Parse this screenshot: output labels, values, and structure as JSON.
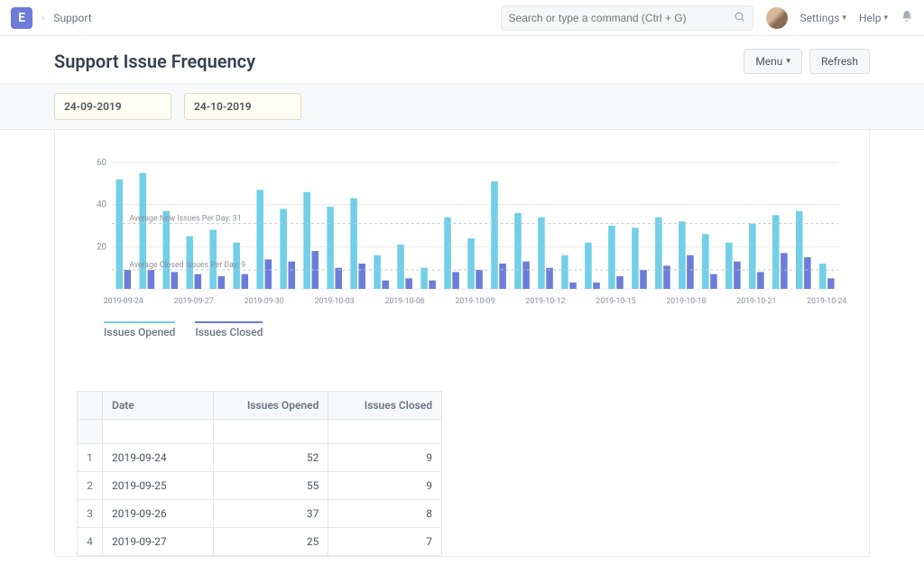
{
  "nav": {
    "logo_letter": "E",
    "breadcrumb": "Support",
    "search_placeholder": "Search or type a command (Ctrl + G)",
    "settings_label": "Settings",
    "help_label": "Help"
  },
  "header": {
    "title": "Support Issue Frequency",
    "menu_label": "Menu",
    "refresh_label": "Refresh"
  },
  "filters": {
    "from_date": "24-09-2019",
    "to_date": "24-10-2019"
  },
  "chart": {
    "type": "grouped-bar",
    "y_max": 60,
    "y_ticks": [
      20,
      40,
      60
    ],
    "avg_new_label": "Average New Issues Per Day: 31",
    "avg_new_value": 31,
    "avg_closed_label": "Average Closed Issues Per Day: 9",
    "avg_closed_value": 9,
    "opened_color": "#71cfe8",
    "closed_color": "#6c7dd9",
    "grid_color": "#e7e9ec",
    "dash_color": "#bfc5cc",
    "axis_text_color": "#8a919a",
    "anno_text_color": "#8a919a",
    "background_color": "#ffffff",
    "bar_group_width": 0.64,
    "bar_gap": 0.06,
    "x_tick_labels": [
      "2019-09-24",
      "2019-09-27",
      "2019-09-30",
      "2019-10-03",
      "2019-10-06",
      "2019-10-09",
      "2019-10-12",
      "2019-10-15",
      "2019-10-18",
      "2019-10-21",
      "2019-10-24"
    ],
    "legend_opened": "Issues Opened",
    "legend_closed": "Issues Closed",
    "data": [
      {
        "date": "2019-09-24",
        "opened": 52,
        "closed": 9
      },
      {
        "date": "2019-09-25",
        "opened": 55,
        "closed": 9
      },
      {
        "date": "2019-09-26",
        "opened": 37,
        "closed": 8
      },
      {
        "date": "2019-09-27",
        "opened": 25,
        "closed": 7
      },
      {
        "date": "2019-09-28",
        "opened": 28,
        "closed": 6
      },
      {
        "date": "2019-09-29",
        "opened": 22,
        "closed": 7
      },
      {
        "date": "2019-09-30",
        "opened": 47,
        "closed": 14
      },
      {
        "date": "2019-10-01",
        "opened": 38,
        "closed": 13
      },
      {
        "date": "2019-10-02",
        "opened": 46,
        "closed": 18
      },
      {
        "date": "2019-10-03",
        "opened": 39,
        "closed": 10
      },
      {
        "date": "2019-10-04",
        "opened": 43,
        "closed": 12
      },
      {
        "date": "2019-10-05",
        "opened": 16,
        "closed": 4
      },
      {
        "date": "2019-10-06",
        "opened": 21,
        "closed": 5
      },
      {
        "date": "2019-10-07",
        "opened": 10,
        "closed": 4
      },
      {
        "date": "2019-10-08",
        "opened": 34,
        "closed": 8
      },
      {
        "date": "2019-10-09",
        "opened": 24,
        "closed": 9
      },
      {
        "date": "2019-10-10",
        "opened": 51,
        "closed": 12
      },
      {
        "date": "2019-10-11",
        "opened": 36,
        "closed": 13
      },
      {
        "date": "2019-10-12",
        "opened": 34,
        "closed": 10
      },
      {
        "date": "2019-10-13",
        "opened": 16,
        "closed": 3
      },
      {
        "date": "2019-10-14",
        "opened": 22,
        "closed": 3
      },
      {
        "date": "2019-10-15",
        "opened": 30,
        "closed": 6
      },
      {
        "date": "2019-10-16",
        "opened": 29,
        "closed": 9
      },
      {
        "date": "2019-10-17",
        "opened": 34,
        "closed": 11
      },
      {
        "date": "2019-10-18",
        "opened": 32,
        "closed": 16
      },
      {
        "date": "2019-10-19",
        "opened": 26,
        "closed": 7
      },
      {
        "date": "2019-10-20",
        "opened": 22,
        "closed": 13
      },
      {
        "date": "2019-10-21",
        "opened": 31,
        "closed": 8
      },
      {
        "date": "2019-10-22",
        "opened": 35,
        "closed": 17
      },
      {
        "date": "2019-10-23",
        "opened": 37,
        "closed": 15
      },
      {
        "date": "2019-10-24",
        "opened": 12,
        "closed": 5
      }
    ]
  },
  "table": {
    "columns": {
      "idx": "",
      "date": "Date",
      "opened": "Issues Opened",
      "closed": "Issues Closed"
    },
    "rows": [
      {
        "n": "1",
        "date": "2019-09-24",
        "opened": "52",
        "closed": "9"
      },
      {
        "n": "2",
        "date": "2019-09-25",
        "opened": "55",
        "closed": "9"
      },
      {
        "n": "3",
        "date": "2019-09-26",
        "opened": "37",
        "closed": "8"
      },
      {
        "n": "4",
        "date": "2019-09-27",
        "opened": "25",
        "closed": "7"
      }
    ]
  }
}
